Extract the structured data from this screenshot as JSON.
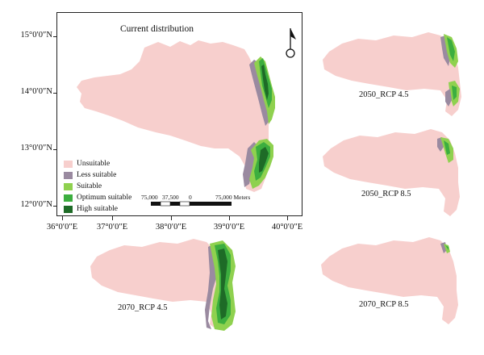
{
  "main_map": {
    "title": "Current distribution",
    "lat_labels": [
      "15°0′0″N",
      "14°0′0″N",
      "13°0′0″N",
      "12°0′0″N"
    ],
    "lon_labels": [
      "36°0′0″E",
      "37°0′0″E",
      "38°0′0″E",
      "39°0′0″E",
      "40°0′0″E"
    ],
    "scale_labels": [
      "75,000",
      "37,500",
      "0",
      "75,000 Meters"
    ],
    "north_arrow_icon": "north-arrow-icon"
  },
  "legend": {
    "items": [
      {
        "label": "Unsuitable",
        "color": "#f7cfcd"
      },
      {
        "label": "Less suitable",
        "color": "#9a8aa0"
      },
      {
        "label": "Suitable",
        "color": "#8fd14f"
      },
      {
        "label": "Optimum suitable",
        "color": "#3cae3f"
      },
      {
        "label": "High suitable",
        "color": "#1e6b27"
      }
    ]
  },
  "panels": [
    {
      "label": "2050_RCP 4.5"
    },
    {
      "label": "2050_RCP 8.5"
    },
    {
      "label": "2070_RCP 4.5"
    },
    {
      "label": "2070_RCP 8.5"
    }
  ]
}
